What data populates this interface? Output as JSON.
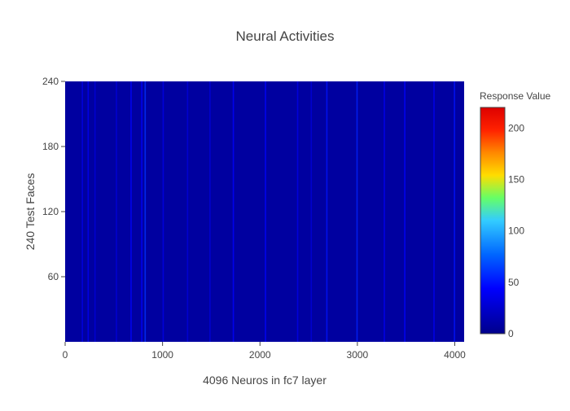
{
  "chart_data": {
    "type": "heatmap",
    "title": "Neural Activities",
    "xlabel": "4096 Neuros in fc7 layer",
    "ylabel": "240 Test Faces",
    "xlim": [
      0,
      4096
    ],
    "ylim": [
      0,
      240
    ],
    "x_ticks": [
      0,
      1000,
      2000,
      3000,
      4000
    ],
    "y_ticks": [
      60,
      120,
      180,
      240
    ],
    "grid": false,
    "colorbar": {
      "title": "Response Value",
      "range": [
        0,
        220
      ],
      "ticks": [
        0,
        50,
        100,
        150,
        200
      ],
      "colorscale": [
        [
          0,
          "#00008b"
        ],
        [
          0.2,
          "#0000ff"
        ],
        [
          0.35,
          "#0066ff"
        ],
        [
          0.5,
          "#33ccff"
        ],
        [
          0.6,
          "#66ff66"
        ],
        [
          0.7,
          "#ffdd00"
        ],
        [
          0.8,
          "#ff8800"
        ],
        [
          0.9,
          "#ff2200"
        ],
        [
          1,
          "#dd0000"
        ]
      ]
    },
    "background_value": 8,
    "bright_columns": [
      {
        "x": 170,
        "value": 35
      },
      {
        "x": 230,
        "value": 40
      },
      {
        "x": 300,
        "value": 30
      },
      {
        "x": 520,
        "value": 30
      },
      {
        "x": 670,
        "value": 45
      },
      {
        "x": 780,
        "value": 45
      },
      {
        "x": 815,
        "value": 60
      },
      {
        "x": 1000,
        "value": 35
      },
      {
        "x": 1250,
        "value": 30
      },
      {
        "x": 1480,
        "value": 30
      },
      {
        "x": 1720,
        "value": 45
      },
      {
        "x": 2050,
        "value": 45
      },
      {
        "x": 2380,
        "value": 35
      },
      {
        "x": 2520,
        "value": 30
      },
      {
        "x": 2680,
        "value": 50
      },
      {
        "x": 2990,
        "value": 55
      },
      {
        "x": 3270,
        "value": 40
      },
      {
        "x": 3480,
        "value": 45
      },
      {
        "x": 3780,
        "value": 40
      },
      {
        "x": 3990,
        "value": 50
      }
    ]
  }
}
